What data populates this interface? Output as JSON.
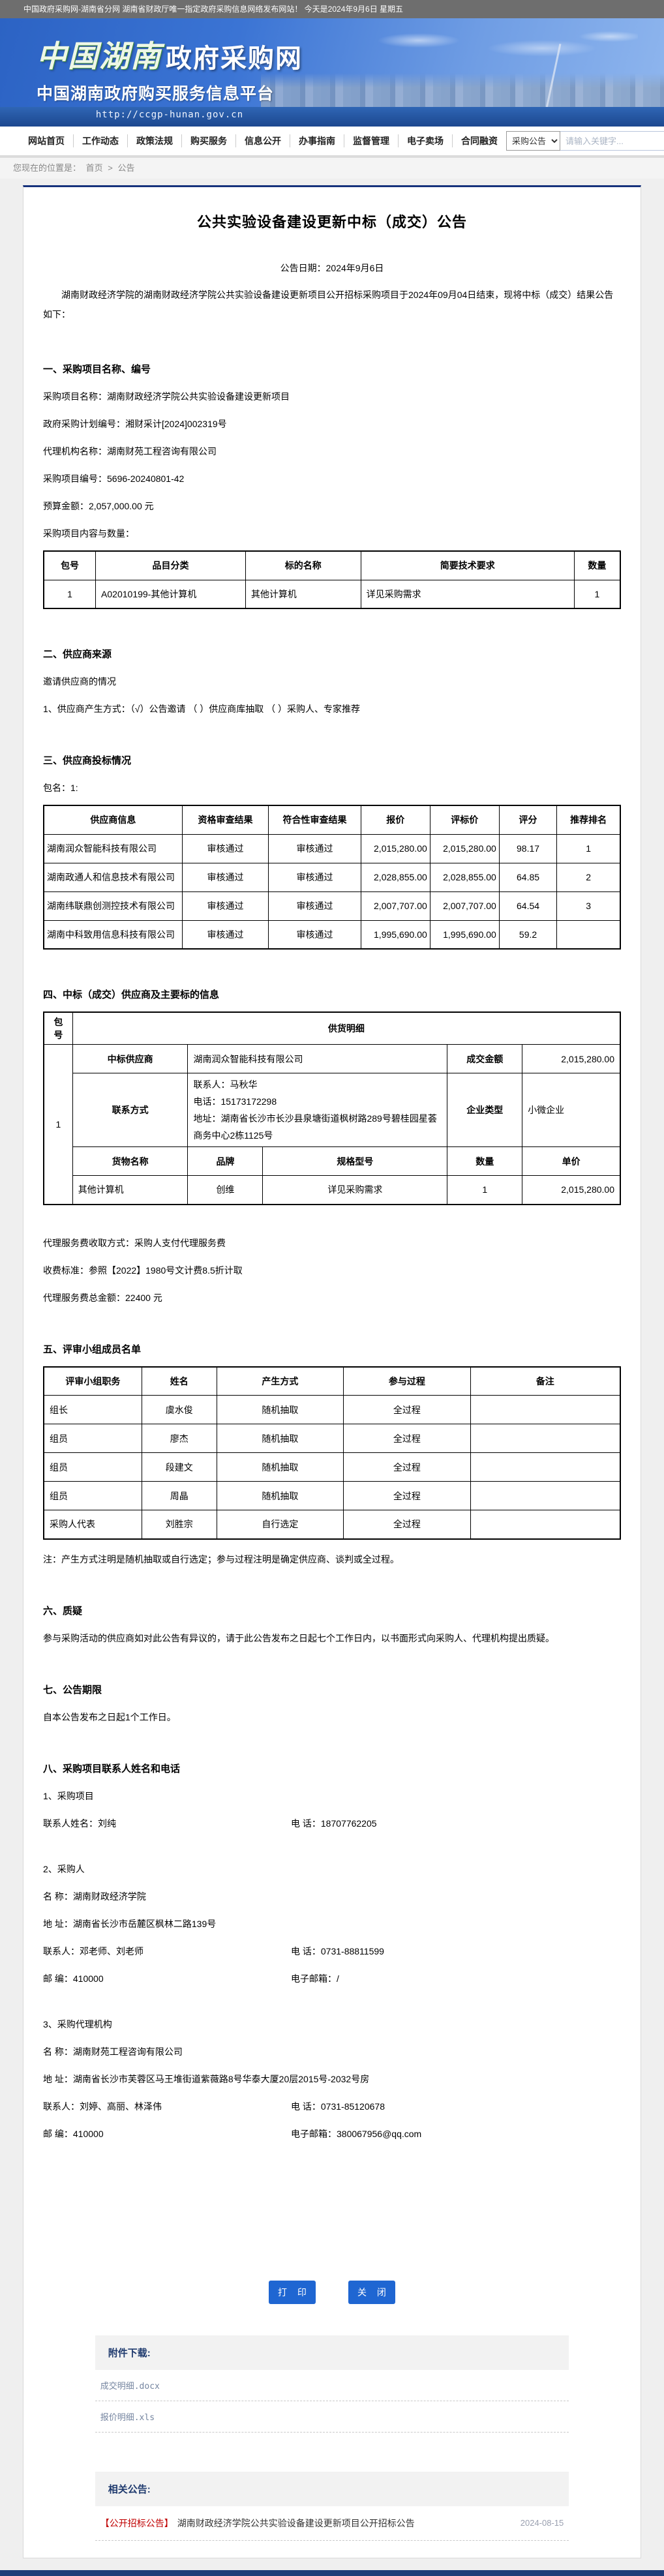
{
  "colors": {
    "accent_blue": "#1f66d2",
    "topbar_gray": "#6e6e6e",
    "footer_navy": "#1e3c78",
    "category_red": "#c00000"
  },
  "topbar": {
    "text": "中国政府采购网-湖南省分网 湖南省财政厅唯一指定政府采购信息网络发布网站！ 今天是2024年9月6日 星期五"
  },
  "header": {
    "logo_calligraphy": "中国湖南",
    "logo_main": "政府采购网",
    "subtitle": "中国湖南政府购买服务信息平台",
    "url": "http://ccgp-hunan.gov.cn"
  },
  "nav": {
    "items": [
      "网站首页",
      "工作动态",
      "政策法规",
      "购买服务",
      "信息公开",
      "办事指南",
      "监督管理",
      "电子卖场",
      "合同融资"
    ]
  },
  "search": {
    "category": "采购公告",
    "placeholder": "请输入关键字..."
  },
  "breadcrumb": {
    "prefix": "您现在的位置是：",
    "home": "首页",
    "separator": ">",
    "current": "公告"
  },
  "notice": {
    "title": "公共实验设备建设更新中标（成交）公告",
    "date_line": "公告日期：2024年9月6日",
    "intro": "湖南财政经济学院的湖南财政经济学院公共实验设备建设更新项目公开招标采购项目于2024年09月04日结束，现将中标（成交）结果公告如下：",
    "s1": {
      "header": "一、采购项目名称、编号",
      "lines": {
        "name": "采购项目名称：湖南财政经济学院公共实验设备建设更新项目",
        "plan_no": "政府采购计划编号：湘财采计[2024]002319号",
        "agency": "代理机构名称：湖南财苑工程咨询有限公司",
        "project_no": "采购项目编号：5696-20240801-42",
        "budget": "预算金额：2,057,000.00  元",
        "content_label": "采购项目内容与数量："
      },
      "table": {
        "headers": [
          "包号",
          "品目分类",
          "标的名称",
          "简要技术要求",
          "数量"
        ],
        "rows": [
          [
            "1",
            "A02010199-其他计算机",
            "其他计算机",
            "详见采购需求",
            "1"
          ]
        ]
      }
    },
    "s2": {
      "header": "二、供应商来源",
      "line1": "邀请供应商的情况",
      "line2": "1、供应商产生方式：（√）公告邀请 （ ）供应商库抽取 （ ）采购人、专家推荐"
    },
    "s3": {
      "header": "三、供应商投标情况",
      "pkg_label": "包名：1:",
      "table": {
        "headers": [
          "供应商信息",
          "资格审查结果",
          "符合性审查结果",
          "报价",
          "评标价",
          "评分",
          "推荐排名"
        ],
        "rows": [
          [
            "湖南润众智能科技有限公司",
            "审核通过",
            "审核通过",
            "2,015,280.00",
            "2,015,280.00",
            "98.17",
            "1"
          ],
          [
            "湖南政通人和信息技术有限公司",
            "审核通过",
            "审核通过",
            "2,028,855.00",
            "2,028,855.00",
            "64.85",
            "2"
          ],
          [
            "湖南纬联鼎创测控技术有限公司",
            "审核通过",
            "审核通过",
            "2,007,707.00",
            "2,007,707.00",
            "64.54",
            "3"
          ],
          [
            "湖南中科致用信息科技有限公司",
            "审核通过",
            "审核通过",
            "1,995,690.00",
            "1,995,690.00",
            "59.2",
            ""
          ]
        ]
      }
    },
    "s4": {
      "header": "四、中标（成交）供应商及主要标的信息",
      "pkg_col": "包号",
      "pkg_no": "1",
      "detail_header": "供货明细",
      "winner_label": "中标供应商",
      "winner": "湖南润众智能科技有限公司",
      "amount_label": "成交金额",
      "amount": "2,015,280.00",
      "contact_label": "联系方式",
      "contact_line1": "联系人：马秋华",
      "contact_line2": "电话：15173172298",
      "contact_line3": "地址：湖南省长沙市长沙县泉塘街道枫树路289号碧桂园星荟商务中心2栋1125号",
      "enterprise_label": "企业类型",
      "enterprise": "小微企业",
      "goods_headers": [
        "货物名称",
        "品牌",
        "规格型号",
        "数量",
        "单价"
      ],
      "goods_row": [
        "其他计算机",
        "创维",
        "详见采购需求",
        "1",
        "2,015,280.00"
      ],
      "fee_line1": "代理服务费收取方式：采购人支付代理服务费",
      "fee_line2": "收费标准：参照【2022】1980号文计费8.5折计取",
      "fee_line3": "代理服务费总金额：22400 元"
    },
    "s5": {
      "header": "五、评审小组成员名单",
      "table": {
        "headers": [
          "评审小组职务",
          "姓名",
          "产生方式",
          "参与过程",
          "备注"
        ],
        "rows": [
          [
            "组长",
            "虞水俊",
            "随机抽取",
            "全过程",
            ""
          ],
          [
            "组员",
            "廖杰",
            "随机抽取",
            "全过程",
            ""
          ],
          [
            "组员",
            "段建文",
            "随机抽取",
            "全过程",
            ""
          ],
          [
            "组员",
            "周晶",
            "随机抽取",
            "全过程",
            ""
          ],
          [
            "采购人代表",
            "刘胜宗",
            "自行选定",
            "全过程",
            ""
          ]
        ]
      },
      "note": "注：产生方式注明是随机抽取或自行选定；参与过程注明是确定供应商、谈判或全过程。"
    },
    "s6": {
      "header": "六、质疑",
      "body": "参与采购活动的供应商如对此公告有异议的，请于此公告发布之日起七个工作日内，以书面形式向采购人、代理机构提出质疑。"
    },
    "s7": {
      "header": "七、公告期限",
      "body": "自本公告发布之日起1个工作日。"
    },
    "s8": {
      "header": "八、采购项目联系人姓名和电话",
      "p1_label": "1、采购项目",
      "p1_name": "联系人姓名：刘纯",
      "p1_phone": "电 话：18707762205",
      "p2_label": "2、采购人",
      "p2_name": "名 称：湖南财政经济学院",
      "p2_addr": "地 址：湖南省长沙市岳麓区枫林二路139号",
      "p2_contact": "联系人：邓老师、刘老师",
      "p2_phone": "电 话：0731-88811599",
      "p2_zip": "邮 编：410000",
      "p2_email": "电子邮箱：/",
      "p3_label": "3、采购代理机构",
      "p3_name": "名 称：湖南财苑工程咨询有限公司",
      "p3_addr": "地 址：湖南省长沙市芙蓉区马王堆街道紫薇路8号华泰大厦20层2015号-2032号房",
      "p3_contact": "联系人：刘婷、高丽、林泽伟",
      "p3_phone": "电 话：0731-85120678",
      "p3_zip": "邮 编：410000",
      "p3_email": "电子邮箱：380067956@qq.com"
    },
    "buttons": {
      "print": "打 印",
      "close": "关 闭"
    }
  },
  "attachments": {
    "title": "附件下载:",
    "files": {
      "f1": "成交明细.docx",
      "f2": "报价明细.xls"
    }
  },
  "related": {
    "title": "相关公告:",
    "item1": {
      "category": "【公开招标公告】",
      "title": "湖南财政经济学院公共实验设备建设更新项目公开招标公告",
      "date": "2024-08-15"
    }
  }
}
